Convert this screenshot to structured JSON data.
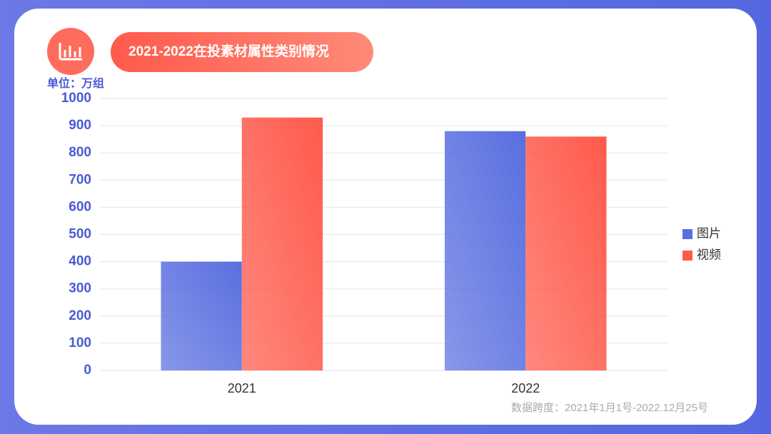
{
  "chart_data": {
    "type": "bar",
    "title": "2021-2022在投素材属性类别情况",
    "unit_label": "单位：万组",
    "footnote": "数据跨度：2021年1月1号-2022.12月25号",
    "categories": [
      "2021",
      "2022"
    ],
    "series": [
      {
        "name": "图片",
        "color": "#5a6fe0",
        "values": [
          400,
          880
        ]
      },
      {
        "name": "视频",
        "color": "#ff5a4c",
        "values": [
          930,
          860
        ]
      }
    ],
    "ylim": [
      0,
      1000
    ],
    "yticks": [
      0,
      100,
      200,
      300,
      400,
      500,
      600,
      700,
      800,
      900,
      1000
    ],
    "grid": true,
    "legend": "right"
  }
}
